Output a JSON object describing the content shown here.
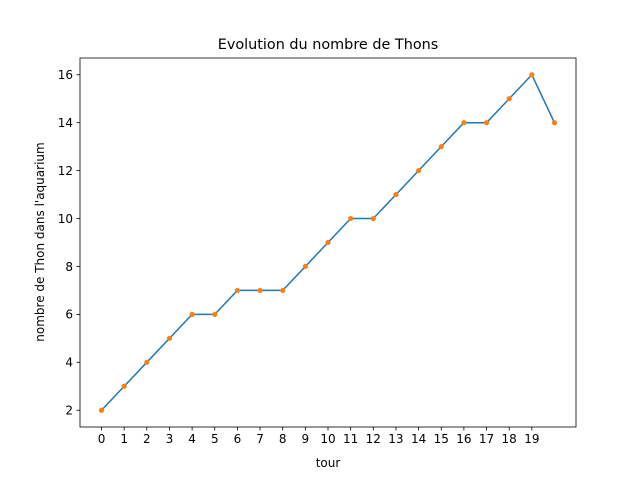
{
  "chart_data": {
    "type": "line",
    "title": "Evolution du nombre de Thons",
    "xlabel": "tour",
    "ylabel": "nombre de Thon dans l'aquarium",
    "x_ticks": [
      "0",
      "1",
      "2",
      "3",
      "4",
      "5",
      "6",
      "7",
      "8",
      "9",
      "10",
      "11",
      "12",
      "13",
      "14",
      "15",
      "16",
      "17",
      "18",
      "19"
    ],
    "y_ticks": [
      "2",
      "4",
      "6",
      "8",
      "10",
      "12",
      "14",
      "16"
    ],
    "x": [
      0,
      1,
      2,
      3,
      4,
      5,
      6,
      7,
      8,
      9,
      10,
      11,
      12,
      13,
      14,
      15,
      16,
      17,
      18,
      19,
      20
    ],
    "values": [
      2,
      3,
      4,
      5,
      6,
      6,
      7,
      7,
      7,
      8,
      9,
      10,
      10,
      11,
      12,
      13,
      14,
      14,
      15,
      16,
      14
    ],
    "xlim": [
      -0.95,
      20.95
    ],
    "ylim": [
      1.3,
      16.7
    ],
    "grid": false,
    "colors": {
      "line": "#1f77b4",
      "marker": "#ff7f0e"
    }
  }
}
